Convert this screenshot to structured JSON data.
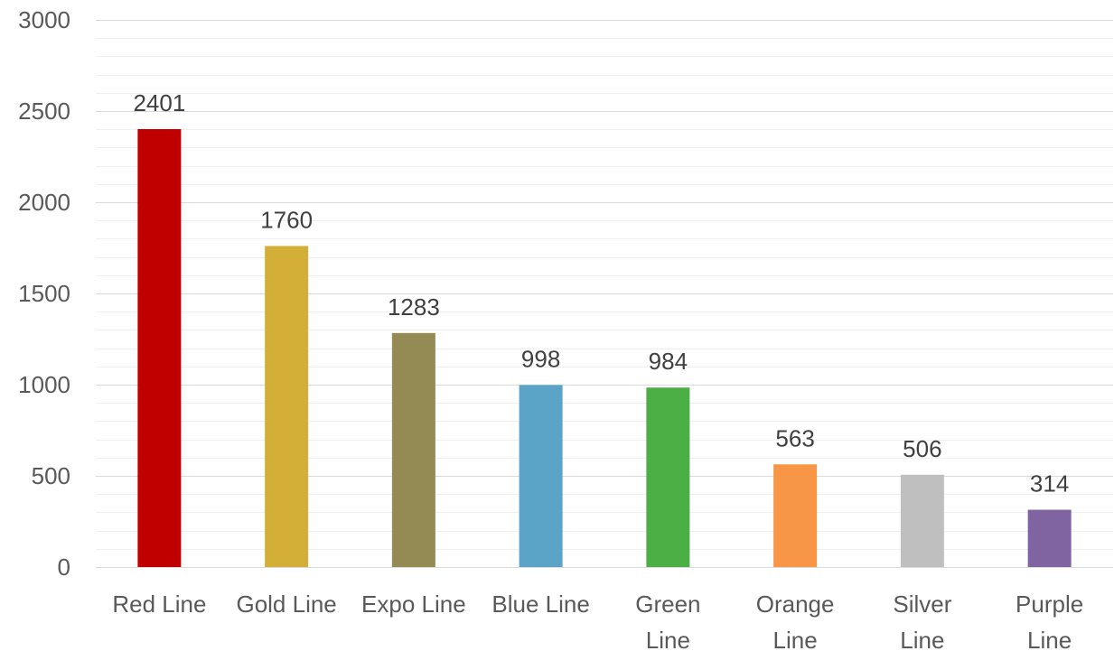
{
  "chart_data": {
    "type": "bar",
    "title": "",
    "xlabel": "",
    "ylabel": "",
    "categories": [
      "Red Line",
      "Gold Line",
      "Expo Line",
      "Blue Line",
      "Green Line",
      "Orange Line",
      "Silver Line",
      "Purple Line"
    ],
    "values": [
      2401,
      1760,
      1283,
      998,
      984,
      563,
      506,
      314
    ],
    "data_labels": [
      "2401",
      "1760",
      "1283",
      "998",
      "984",
      "563",
      "506",
      "314"
    ],
    "colors": [
      "#c00000",
      "#d4af37",
      "#948a54",
      "#5ba3c7",
      "#4caf45",
      "#f79646",
      "#bfbfbf",
      "#8064a2"
    ],
    "ylim": [
      0,
      3000
    ],
    "yticks": [
      0,
      500,
      1000,
      1500,
      2000,
      2500,
      3000
    ],
    "ytick_labels": [
      "0",
      "500",
      "1000",
      "1500",
      "2000",
      "2500",
      "3000"
    ],
    "minor_gridline_step": 100,
    "grid": true,
    "legend": "none"
  }
}
